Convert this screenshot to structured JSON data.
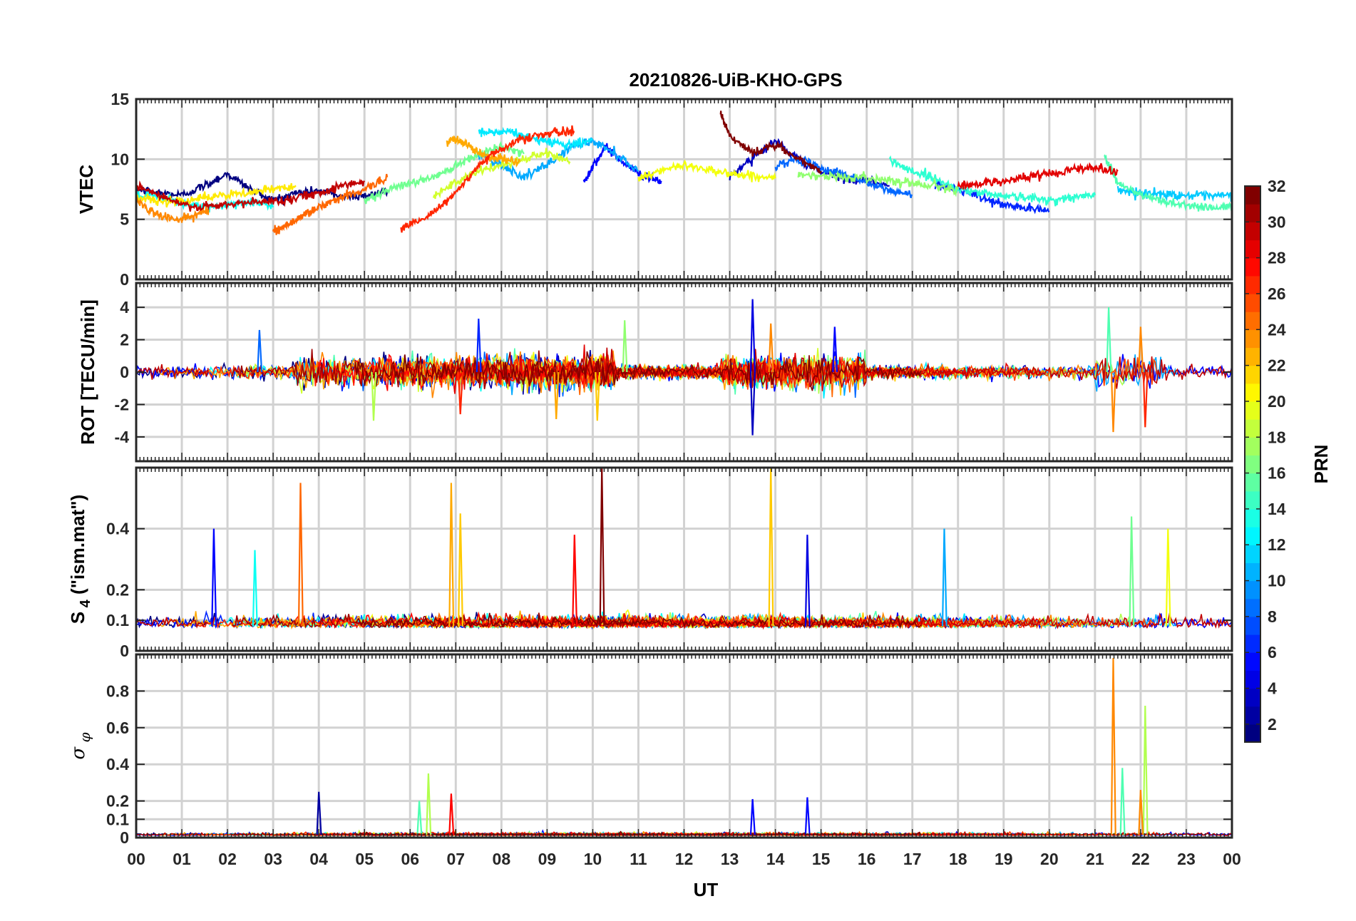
{
  "chart_data": {
    "type": "line",
    "title": "20210826-UiB-KHO-GPS",
    "xlabel": "UT",
    "x_ticks": [
      "00",
      "01",
      "02",
      "03",
      "04",
      "05",
      "06",
      "07",
      "08",
      "09",
      "10",
      "11",
      "12",
      "13",
      "14",
      "15",
      "16",
      "17",
      "18",
      "19",
      "20",
      "21",
      "22",
      "23",
      "00"
    ],
    "xlim": [
      0,
      24
    ],
    "grid": true,
    "colormap": "jet",
    "colorbar": {
      "label": "PRN",
      "range": [
        1,
        32
      ],
      "ticks": [
        "2",
        "4",
        "6",
        "8",
        "10",
        "12",
        "14",
        "16",
        "18",
        "20",
        "22",
        "24",
        "26",
        "28",
        "30",
        "32"
      ]
    },
    "panels": [
      {
        "id": "vtec",
        "ylabel": "VTEC",
        "ylim": [
          0,
          15
        ],
        "yticks": [
          "0",
          "5",
          "10",
          "15"
        ],
        "series": [
          {
            "prn": 1,
            "x": [
              0,
              0.5,
              1,
              1.5,
              2,
              2.5,
              3,
              3.5,
              4,
              4.5,
              5,
              5.5
            ],
            "y": [
              7.5,
              7.2,
              7.0,
              7.8,
              8.8,
              7.5,
              6.6,
              7.2,
              7.4,
              6.9,
              7.0,
              7.3
            ]
          },
          {
            "prn": 3,
            "x": [
              13,
              13.5,
              14,
              14.5,
              15,
              15.5,
              16,
              16.5
            ],
            "y": [
              8.5,
              10.2,
              11.5,
              10.0,
              9.0,
              8.4,
              8.2,
              7.8
            ]
          },
          {
            "prn": 5,
            "x": [
              9.8,
              10,
              10.3,
              10.6,
              11,
              11.5
            ],
            "y": [
              8.0,
              9.5,
              11.0,
              10.0,
              8.8,
              8.2
            ]
          },
          {
            "prn": 6,
            "x": [
              17.5,
              18,
              18.5,
              19,
              19.5,
              20
            ],
            "y": [
              7.8,
              7.5,
              6.8,
              6.2,
              5.9,
              5.7
            ]
          },
          {
            "prn": 8,
            "x": [
              14,
              14.5,
              15,
              15.5,
              16,
              16.5,
              17
            ],
            "y": [
              9.5,
              10.0,
              9.2,
              8.8,
              8.0,
              7.4,
              7.0
            ]
          },
          {
            "prn": 10,
            "x": [
              7.5,
              8,
              8.5,
              9,
              9.5,
              10,
              10.5,
              11
            ],
            "y": [
              10.5,
              9.5,
              8.5,
              9.5,
              11.0,
              11.5,
              10.5,
              9.0
            ]
          },
          {
            "prn": 11,
            "x": [
              21.5,
              22,
              22.5,
              23,
              23.5,
              24
            ],
            "y": [
              7.5,
              7.2,
              7.1,
              7.0,
              6.9,
              7.0
            ]
          },
          {
            "prn": 12,
            "x": [
              7.5,
              7.8,
              8.2,
              8.6,
              9,
              9.5,
              10
            ],
            "y": [
              12.3,
              12.2,
              12.3,
              11.8,
              11.5,
              11.2,
              11.6
            ]
          },
          {
            "prn": 13,
            "x": [
              0,
              0.5,
              1,
              1.5,
              2,
              2.5,
              3
            ],
            "y": [
              7.0,
              6.8,
              6.4,
              6.0,
              6.2,
              6.5,
              6.0
            ]
          },
          {
            "prn": 14,
            "x": [
              16.5,
              17,
              17.5,
              18,
              18.5,
              19,
              19.5,
              20,
              20.5,
              21
            ],
            "y": [
              10.0,
              9.0,
              8.4,
              7.5,
              7.2,
              7.0,
              6.8,
              6.6,
              6.8,
              7.0
            ]
          },
          {
            "prn": 15,
            "x": [
              21.2,
              21.5,
              22,
              22.5,
              23,
              23.5,
              24
            ],
            "y": [
              10.5,
              8.0,
              7.0,
              6.5,
              6.2,
              6.0,
              6.0
            ]
          },
          {
            "prn": 16,
            "x": [
              5,
              5.5,
              6,
              6.5,
              7,
              7.5,
              8,
              8.5
            ],
            "y": [
              6.5,
              7.5,
              8.0,
              8.5,
              9.5,
              10.5,
              11.0,
              10.5
            ]
          },
          {
            "prn": 17,
            "x": [
              14.5,
              15,
              15.5,
              16,
              16.5,
              17,
              17.5,
              18
            ],
            "y": [
              8.8,
              8.6,
              8.5,
              8.4,
              8.3,
              8.0,
              7.8,
              7.5
            ]
          },
          {
            "prn": 19,
            "x": [
              6.5,
              7,
              7.5,
              8,
              8.5,
              9,
              9.5
            ],
            "y": [
              7.0,
              8.0,
              9.0,
              9.5,
              10.0,
              10.5,
              9.8
            ]
          },
          {
            "prn": 20,
            "x": [
              11,
              11.5,
              12,
              12.5,
              13,
              13.5,
              14
            ],
            "y": [
              8.5,
              9.0,
              9.5,
              9.2,
              8.8,
              8.6,
              8.4
            ]
          },
          {
            "prn": 21,
            "x": [
              0,
              0.5,
              1,
              1.5,
              2,
              2.5,
              3,
              3.5
            ],
            "y": [
              6.8,
              6.5,
              6.6,
              6.8,
              7.0,
              7.2,
              7.5,
              7.8
            ]
          },
          {
            "prn": 23,
            "x": [
              6.8,
              7,
              7.3,
              7.6,
              8,
              8.4
            ],
            "y": [
              11.5,
              11.7,
              11.0,
              10.4,
              10.0,
              9.8
            ]
          },
          {
            "prn": 24,
            "x": [
              0,
              0.4,
              0.8,
              1.2,
              1.6
            ],
            "y": [
              6.5,
              5.5,
              5.0,
              5.2,
              5.8
            ]
          },
          {
            "prn": 25,
            "x": [
              3,
              3.3,
              3.6,
              4,
              4.5,
              5,
              5.5
            ],
            "y": [
              4.0,
              4.5,
              5.2,
              6.0,
              6.8,
              7.5,
              8.5
            ]
          },
          {
            "prn": 27,
            "x": [
              5.8,
              6.3,
              6.8,
              7.3,
              7.8,
              8.3,
              8.8,
              9.2,
              9.6
            ],
            "y": [
              4.3,
              5.0,
              6.5,
              8.5,
              10.5,
              11.5,
              12.0,
              12.2,
              12.3
            ]
          },
          {
            "prn": 29,
            "x": [
              18,
              18.5,
              19,
              19.5,
              20,
              20.5,
              21,
              21.5
            ],
            "y": [
              7.8,
              8.0,
              8.2,
              8.5,
              8.8,
              9.2,
              9.3,
              9.0
            ]
          },
          {
            "prn": 30,
            "x": [
              0,
              0.5,
              1,
              1.5,
              2,
              2.5,
              3,
              3.5,
              4,
              4.5,
              5
            ],
            "y": [
              7.8,
              7.0,
              6.2,
              6.0,
              6.2,
              6.4,
              6.5,
              6.8,
              7.2,
              7.8,
              8.2
            ]
          },
          {
            "prn": 32,
            "x": [
              12.8,
              13,
              13.5,
              14,
              14.5,
              15
            ],
            "y": [
              13.8,
              12.0,
              10.5,
              11.2,
              10.0,
              9.0
            ]
          }
        ]
      },
      {
        "id": "rot",
        "ylabel": "ROT [TECU/min]",
        "ylim": [
          -5.5,
          5.5
        ],
        "yticks": [
          "-4",
          "-2",
          "0",
          "2",
          "4"
        ]
      },
      {
        "id": "s4",
        "ylabel": "S4 (\"ism.mat\")",
        "ylabel_main": "S",
        "ylabel_sub": "4",
        "ylabel_rest": " (\"ism.mat\")",
        "ylim": [
          0,
          0.6
        ],
        "yticks": [
          "0",
          "0.1",
          "0.2",
          "0.4"
        ]
      },
      {
        "id": "sigma_phi",
        "ylabel": "σ φ",
        "ylabel_main": "σ",
        "ylabel_sub": "φ",
        "ylim": [
          0,
          1
        ],
        "yticks": [
          "0",
          "0.1",
          "0.2",
          "0.4",
          "0.6",
          "0.8"
        ]
      }
    ],
    "peak_events": [
      {
        "panel": "rot",
        "prn": 8,
        "x": 2.7,
        "y": 2.6
      },
      {
        "panel": "rot",
        "prn": 6,
        "x": 7.5,
        "y": 3.3
      },
      {
        "panel": "rot",
        "prn": 27,
        "x": 7.1,
        "y": -2.6
      },
      {
        "panel": "rot",
        "prn": 23,
        "x": 9.2,
        "y": -2.9
      },
      {
        "panel": "rot",
        "prn": 22,
        "x": 10.1,
        "y": -3.0
      },
      {
        "panel": "rot",
        "prn": 17,
        "x": 10.7,
        "y": 3.2
      },
      {
        "panel": "rot",
        "prn": 4,
        "x": 13.5,
        "y": 4.5
      },
      {
        "panel": "rot",
        "prn": 3,
        "x": 13.5,
        "y": -3.9
      },
      {
        "panel": "rot",
        "prn": 24,
        "x": 13.9,
        "y": 3.0
      },
      {
        "panel": "rot",
        "prn": 5,
        "x": 15.3,
        "y": 2.8
      },
      {
        "panel": "rot",
        "prn": 15,
        "x": 21.3,
        "y": 4.0
      },
      {
        "panel": "rot",
        "prn": 24,
        "x": 21.4,
        "y": -3.7
      },
      {
        "panel": "rot",
        "prn": 24,
        "x": 22.0,
        "y": 2.8
      },
      {
        "panel": "rot",
        "prn": 27,
        "x": 22.1,
        "y": -3.4
      },
      {
        "panel": "rot",
        "prn": 18,
        "x": 5.2,
        "y": -3.0
      },
      {
        "panel": "s4",
        "prn": 5,
        "x": 1.7,
        "y": 0.4
      },
      {
        "panel": "s4",
        "prn": 13,
        "x": 2.6,
        "y": 0.33
      },
      {
        "panel": "s4",
        "prn": 25,
        "x": 3.6,
        "y": 0.55
      },
      {
        "panel": "s4",
        "prn": 23,
        "x": 6.9,
        "y": 0.55
      },
      {
        "panel": "s4",
        "prn": 22,
        "x": 7.1,
        "y": 0.45
      },
      {
        "panel": "s4",
        "prn": 28,
        "x": 9.6,
        "y": 0.38
      },
      {
        "panel": "s4",
        "prn": 32,
        "x": 10.2,
        "y": 0.6
      },
      {
        "panel": "s4",
        "prn": 22,
        "x": 13.9,
        "y": 0.6
      },
      {
        "panel": "s4",
        "prn": 4,
        "x": 14.7,
        "y": 0.38
      },
      {
        "panel": "s4",
        "prn": 10,
        "x": 17.7,
        "y": 0.4
      },
      {
        "panel": "s4",
        "prn": 16,
        "x": 21.8,
        "y": 0.44
      },
      {
        "panel": "s4",
        "prn": 20,
        "x": 22.6,
        "y": 0.4
      },
      {
        "panel": "sigma_phi",
        "prn": 2,
        "x": 4.0,
        "y": 0.25
      },
      {
        "panel": "sigma_phi",
        "prn": 18,
        "x": 6.4,
        "y": 0.35
      },
      {
        "panel": "sigma_phi",
        "prn": 15,
        "x": 6.2,
        "y": 0.2
      },
      {
        "panel": "sigma_phi",
        "prn": 28,
        "x": 6.9,
        "y": 0.24
      },
      {
        "panel": "sigma_phi",
        "prn": 5,
        "x": 13.5,
        "y": 0.21
      },
      {
        "panel": "sigma_phi",
        "prn": 5,
        "x": 14.7,
        "y": 0.22
      },
      {
        "panel": "sigma_phi",
        "prn": 24,
        "x": 21.4,
        "y": 0.98
      },
      {
        "panel": "sigma_phi",
        "prn": 15,
        "x": 21.6,
        "y": 0.38
      },
      {
        "panel": "sigma_phi",
        "prn": 18,
        "x": 22.1,
        "y": 0.72
      },
      {
        "panel": "sigma_phi",
        "prn": 24,
        "x": 22.0,
        "y": 0.26
      }
    ]
  }
}
